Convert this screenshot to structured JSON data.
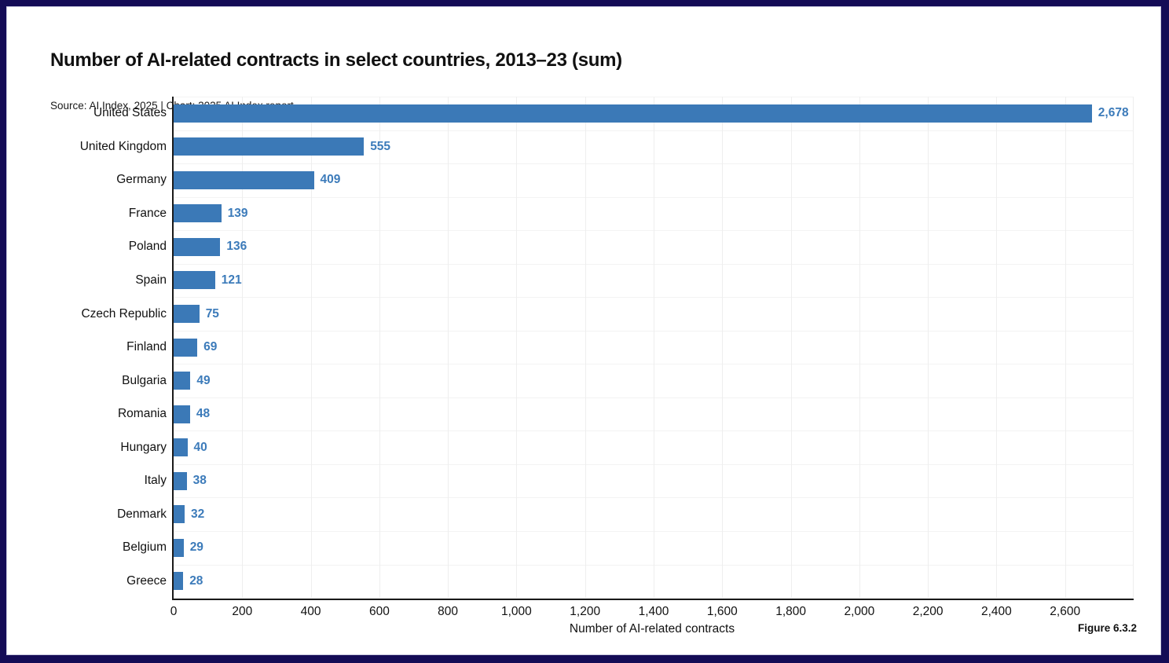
{
  "frame": {
    "border_color": "#140C56",
    "panel_color": "#ffffff"
  },
  "header": {
    "title": "Number of AI-related contracts in select countries, 2013–23 (sum)",
    "source_line": "Source: AI Index, 2025 | Chart: 2025 AI Index report"
  },
  "chart_data": {
    "type": "bar",
    "orientation": "horizontal",
    "title": "Number of AI-related contracts in select countries, 2013–23 (sum)",
    "subtitle": "Source: AI Index, 2025 | Chart: 2025 AI Index report",
    "categories": [
      "United States",
      "United Kingdom",
      "Germany",
      "France",
      "Poland",
      "Spain",
      "Czech Republic",
      "Finland",
      "Bulgaria",
      "Romania",
      "Hungary",
      "Italy",
      "Denmark",
      "Belgium",
      "Greece"
    ],
    "values": [
      2678,
      555,
      409,
      139,
      136,
      121,
      75,
      69,
      49,
      48,
      40,
      38,
      32,
      29,
      28
    ],
    "value_labels": [
      "2,678",
      "555",
      "409",
      "139",
      "136",
      "121",
      "75",
      "69",
      "49",
      "48",
      "40",
      "38",
      "32",
      "29",
      "28"
    ],
    "xlabel": "Number of AI-related contracts",
    "ylabel": "",
    "xlim": [
      0,
      2800
    ],
    "xticks": [
      0,
      200,
      400,
      600,
      800,
      1000,
      1200,
      1400,
      1600,
      1800,
      2000,
      2200,
      2400,
      2600
    ],
    "xtick_labels": [
      "0",
      "200",
      "400",
      "600",
      "800",
      "1,000",
      "1,200",
      "1,400",
      "1,600",
      "1,800",
      "2,000",
      "2,200",
      "2,400",
      "2,600"
    ],
    "grid": true,
    "bar_color": "#3B79B7",
    "value_label_color": "#3C7BBA",
    "legend_position": "none"
  },
  "footer": {
    "figure_label": "Figure 6.3.2"
  }
}
